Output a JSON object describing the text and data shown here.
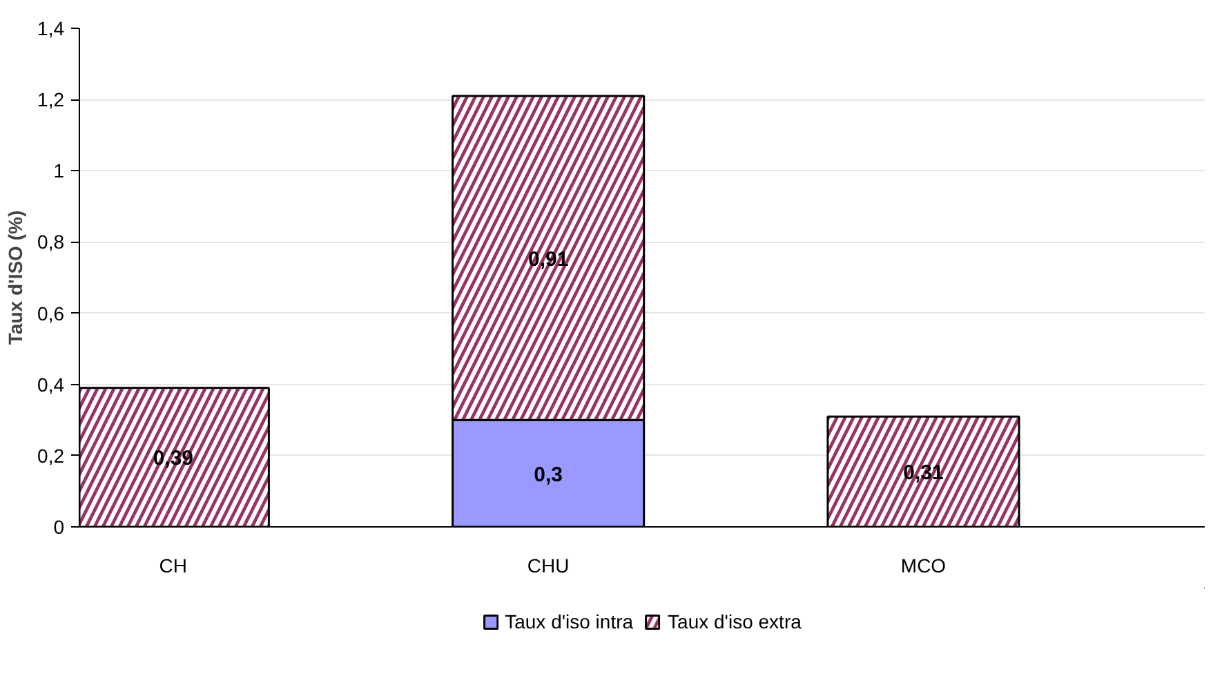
{
  "chart_data": {
    "type": "bar",
    "stacked": true,
    "ylabel": "Taux d'ISO (%)",
    "categories": [
      "CH",
      "CHU",
      "MCO"
    ],
    "series": [
      {
        "name": "Taux d'iso intra",
        "color": "#9999ff",
        "values": [
          null,
          0.3,
          null
        ],
        "value_labels": [
          null,
          "0,3",
          null
        ]
      },
      {
        "name": "Taux d'iso extra",
        "color": "#993366",
        "values": [
          0.39,
          0.91,
          0.31
        ],
        "value_labels": [
          "0,39",
          "0,91",
          "0,31"
        ]
      }
    ],
    "ylim": [
      0,
      1.4
    ],
    "yticks": [
      0,
      {
        "value": 0.2,
        "label": "0,2"
      },
      {
        "value": 0.4,
        "label": "0,4"
      },
      {
        "value": 0.6,
        "label": "0,6"
      },
      {
        "value": 0.8,
        "label": "0,8"
      },
      1,
      {
        "value": 1.2,
        "label": "1,2"
      },
      {
        "value": 1.4,
        "label": "1,4"
      }
    ],
    "grid": "y",
    "legend": "bottom"
  }
}
